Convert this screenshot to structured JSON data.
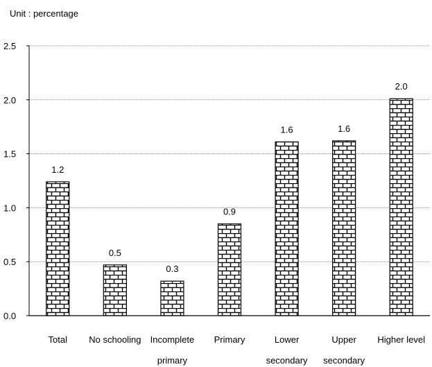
{
  "chart_data": {
    "type": "bar",
    "unit_label": "Unit : percentage",
    "categories": [
      [
        "Total"
      ],
      [
        "No schooling"
      ],
      [
        "Incomplete",
        "primary"
      ],
      [
        "Primary"
      ],
      [
        "Lower",
        "secondary"
      ],
      [
        "Upper",
        "secondary"
      ],
      [
        "Higher level"
      ]
    ],
    "values": [
      1.24,
      0.47,
      0.32,
      0.85,
      1.61,
      1.62,
      2.01
    ],
    "value_labels": [
      "1.2",
      "0.5",
      "0.3",
      "0.9",
      "1.6",
      "1.6",
      "2.0"
    ],
    "ylim": [
      0,
      2.5
    ],
    "yticks": [
      "0.0",
      "0.5",
      "1.0",
      "1.5",
      "2.0",
      "2.5"
    ],
    "grid": "horizontal dotted",
    "legend": "none",
    "bar_pattern": "brick"
  }
}
